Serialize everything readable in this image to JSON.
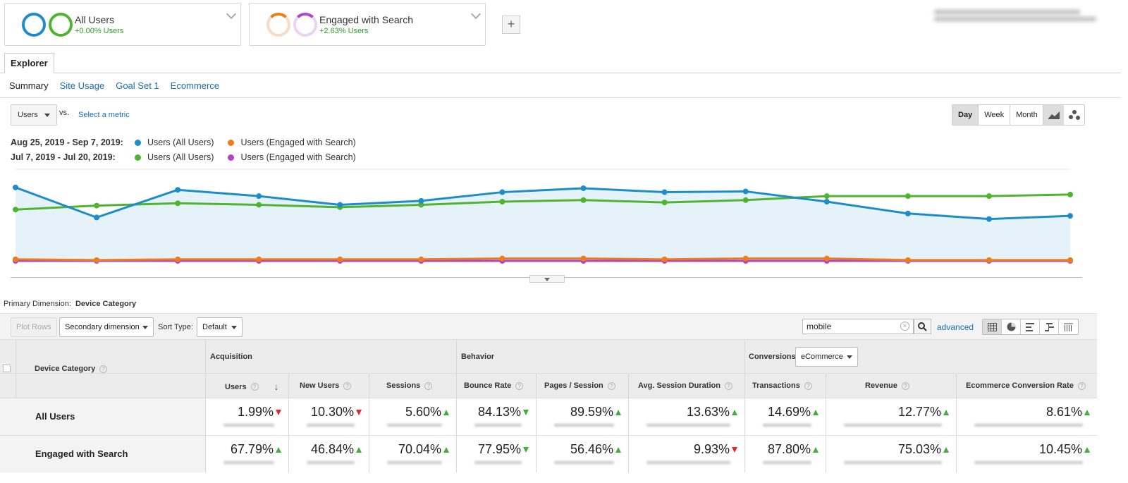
{
  "segments": [
    {
      "title": "All Users",
      "sub": "+0.00% Users"
    },
    {
      "title": "Engaged with Search",
      "sub": "+2.63% Users"
    }
  ],
  "tabs": {
    "explorer": "Explorer"
  },
  "subtabs": [
    "Summary",
    "Site Usage",
    "Goal Set 1",
    "Ecommerce"
  ],
  "metric": {
    "selected": "Users",
    "vs": "vs.",
    "select_metric": "Select a metric"
  },
  "period_buttons": [
    "Day",
    "Week",
    "Month"
  ],
  "legend": [
    {
      "period": "Aug 25, 2019 - Sep 7, 2019:",
      "a": "Users (All Users)",
      "b": "Users (Engaged with Search)"
    },
    {
      "period": "Jul 7, 2019 - Jul 20, 2019:",
      "a": "Users (All Users)",
      "b": "Users (Engaged with Search)"
    }
  ],
  "colors": {
    "blue": "#1c8dc9",
    "green": "#50b432",
    "orange": "#ed7d1a",
    "purple": "#b045c6"
  },
  "chart_data": {
    "type": "line",
    "xlabel": "",
    "ylabel": "",
    "series": [
      {
        "name": "Users (All Users)",
        "color": "#1c8dc9",
        "values": [
          0.93,
          0.55,
          0.9,
          0.82,
          0.71,
          0.76,
          0.87,
          0.92,
          0.87,
          0.88,
          0.75,
          0.6,
          0.53,
          0.57
        ]
      },
      {
        "name": "Users (Engaged with Search)",
        "color": "#ed7d1a",
        "values": [
          0.02,
          0.01,
          0.02,
          0.02,
          0.02,
          0.02,
          0.03,
          0.03,
          0.02,
          0.03,
          0.03,
          0.01,
          0.01,
          0.01
        ]
      },
      {
        "name": "Users (All Users)",
        "color": "#50b432",
        "values": [
          0.65,
          0.7,
          0.73,
          0.71,
          0.68,
          0.71,
          0.75,
          0.77,
          0.74,
          0.77,
          0.82,
          0.82,
          0.82,
          0.84
        ]
      },
      {
        "name": "Users (Engaged with Search)",
        "color": "#b045c6",
        "values": [
          0.0,
          0.0,
          0.0,
          0.0,
          0.0,
          0.0,
          0.0,
          0.0,
          0.0,
          0.0,
          0.0,
          0.0,
          0.0,
          0.0
        ]
      }
    ]
  },
  "primary_dimension": {
    "label": "Primary Dimension:",
    "value": "Device Category"
  },
  "toolbar": {
    "plot_rows": "Plot Rows",
    "secondary_dimension": "Secondary dimension",
    "sort_type_label": "Sort Type:",
    "sort_type": "Default",
    "search": "mobile",
    "advanced": "advanced"
  },
  "table": {
    "dimension_header": "Device Category",
    "groups": [
      "Acquisition",
      "Behavior",
      "Conversions"
    ],
    "conversion_select": "eCommerce",
    "columns": [
      "Users",
      "New Users",
      "Sessions",
      "Bounce Rate",
      "Pages / Session",
      "Avg. Session Duration",
      "Transactions",
      "Revenue",
      "Ecommerce Conversion Rate"
    ],
    "rows": [
      {
        "label": "All Users",
        "values": [
          "1.99%",
          "10.30%",
          "5.60%",
          "84.13%",
          "89.59%",
          "13.63%",
          "14.69%",
          "12.77%",
          "8.61%"
        ],
        "trend": [
          "down",
          "down",
          "up",
          "downgreen",
          "up",
          "up",
          "up",
          "up",
          "up"
        ]
      },
      {
        "label": "Engaged with Search",
        "values": [
          "67.79%",
          "46.84%",
          "70.04%",
          "77.95%",
          "56.46%",
          "9.93%",
          "87.80%",
          "75.03%",
          "10.45%"
        ],
        "trend": [
          "up",
          "up",
          "up",
          "downgreen",
          "up",
          "down",
          "up",
          "up",
          "up"
        ]
      }
    ]
  }
}
